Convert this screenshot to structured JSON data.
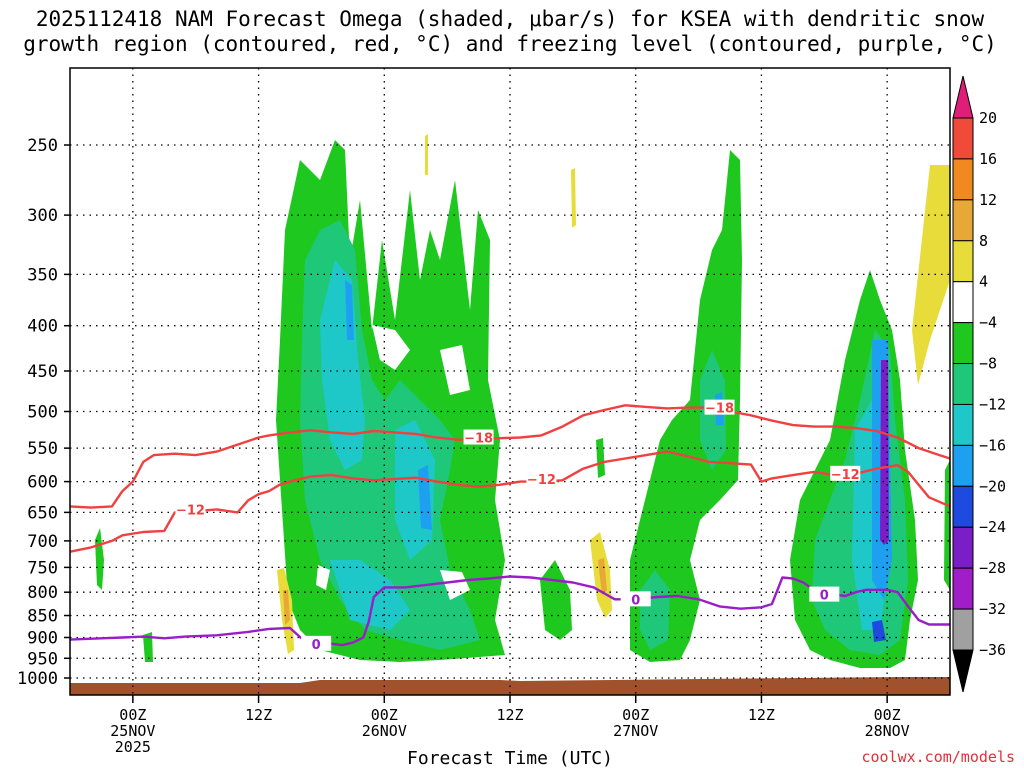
{
  "title": {
    "line1": "2025112418 NAM Forecast Omega (shaded, μbar/s) for KSEA with dendritic snow",
    "line2": "growth region (contoured, red, °C) and freezing level (contoured, purple, °C)"
  },
  "credit": "coolwx.com/models",
  "chart_data": {
    "type": "time-height cross section",
    "title": "2025112418 NAM Forecast Omega (shaded, μbar/s) for KSEA with dendritic snow growth region (contoured, red, °C) and freezing level (contoured, purple, °C)",
    "xlabel": "Forecast Time (UTC)",
    "ylabel": "",
    "x_range_hours": [
      0,
      84
    ],
    "y_range_hpa": [
      1000,
      200
    ],
    "y_ticks": [
      250,
      300,
      350,
      400,
      450,
      500,
      550,
      600,
      650,
      700,
      750,
      800,
      850,
      900,
      950,
      1000
    ],
    "x_ticks": [
      {
        "hour": 6,
        "label": "00Z",
        "sub1": "25NOV",
        "sub2": "2025"
      },
      {
        "hour": 18,
        "label": "12Z",
        "sub1": "",
        "sub2": ""
      },
      {
        "hour": 30,
        "label": "00Z",
        "sub1": "26NOV",
        "sub2": ""
      },
      {
        "hour": 42,
        "label": "12Z",
        "sub1": "",
        "sub2": ""
      },
      {
        "hour": 54,
        "label": "00Z",
        "sub1": "27NOV",
        "sub2": ""
      },
      {
        "hour": 66,
        "label": "12Z",
        "sub1": "",
        "sub2": ""
      },
      {
        "hour": 78,
        "label": "00Z",
        "sub1": "28NOV",
        "sub2": ""
      }
    ],
    "colorbar": {
      "labels": [
        "20",
        "16",
        "12",
        "8",
        "4",
        "−4",
        "−8",
        "−12",
        "−16",
        "−20",
        "−24",
        "−28",
        "−32",
        "−36"
      ],
      "colors": [
        "#e01e78",
        "#f04a3a",
        "#f08a20",
        "#e8a838",
        "#e8dc3a",
        "#ffffff",
        "#1ec81e",
        "#1ec878",
        "#1ec8c8",
        "#1ea0f0",
        "#1e4ae0",
        "#7a1ec8",
        "#a01ec8",
        "#a0a0a0",
        "#000000"
      ]
    },
    "series": [
      {
        "name": "-12 °C isotherm",
        "color": "#f04040",
        "labels": [
          "−12",
          "−12",
          "−12"
        ],
        "points": [
          [
            0,
            720
          ],
          [
            2,
            712
          ],
          [
            4,
            700
          ],
          [
            5,
            690
          ],
          [
            7,
            684
          ],
          [
            9,
            682
          ],
          [
            10,
            650
          ],
          [
            12,
            648
          ],
          [
            14,
            645
          ],
          [
            16,
            650
          ],
          [
            17,
            630
          ],
          [
            18,
            620
          ],
          [
            19,
            615
          ],
          [
            20,
            605
          ],
          [
            21,
            600
          ],
          [
            23,
            592
          ],
          [
            25,
            590
          ],
          [
            27,
            595
          ],
          [
            29,
            598
          ],
          [
            31,
            596
          ],
          [
            33,
            594
          ],
          [
            35,
            600
          ],
          [
            37,
            605
          ],
          [
            39,
            608
          ],
          [
            41,
            605
          ],
          [
            43,
            600
          ],
          [
            45,
            600
          ],
          [
            47,
            598
          ],
          [
            49,
            580
          ],
          [
            51,
            570
          ],
          [
            53,
            565
          ],
          [
            55,
            560
          ],
          [
            57,
            555
          ],
          [
            59,
            562
          ],
          [
            61,
            570
          ],
          [
            63,
            572
          ],
          [
            65,
            574
          ],
          [
            66,
            600
          ],
          [
            67,
            595
          ],
          [
            69,
            590
          ],
          [
            71,
            585
          ],
          [
            73,
            590
          ],
          [
            75,
            588
          ],
          [
            77,
            580
          ],
          [
            79,
            575
          ],
          [
            80,
            585
          ],
          [
            81,
            605
          ],
          [
            82,
            625
          ],
          [
            84,
            640
          ]
        ]
      },
      {
        "name": "-18 °C isotherm",
        "color": "#f04040",
        "labels": [
          "−18",
          "−18"
        ],
        "points": [
          [
            0,
            640
          ],
          [
            2,
            642
          ],
          [
            4,
            640
          ],
          [
            5,
            615
          ],
          [
            6,
            600
          ],
          [
            7,
            570
          ],
          [
            8,
            560
          ],
          [
            10,
            558
          ],
          [
            12,
            560
          ],
          [
            14,
            555
          ],
          [
            16,
            545
          ],
          [
            17,
            540
          ],
          [
            18,
            535
          ],
          [
            19,
            532
          ],
          [
            21,
            528
          ],
          [
            23,
            525
          ],
          [
            25,
            528
          ],
          [
            27,
            530
          ],
          [
            29,
            526
          ],
          [
            31,
            528
          ],
          [
            33,
            530
          ],
          [
            35,
            535
          ],
          [
            37,
            538
          ],
          [
            39,
            538
          ],
          [
            41,
            536
          ],
          [
            43,
            535
          ],
          [
            45,
            532
          ],
          [
            47,
            520
          ],
          [
            49,
            505
          ],
          [
            51,
            498
          ],
          [
            53,
            492
          ],
          [
            55,
            494
          ],
          [
            57,
            496
          ],
          [
            59,
            495
          ],
          [
            61,
            495
          ],
          [
            63,
            500
          ],
          [
            65,
            505
          ],
          [
            67,
            512
          ],
          [
            69,
            518
          ],
          [
            71,
            520
          ],
          [
            73,
            520
          ],
          [
            75,
            522
          ],
          [
            77,
            526
          ],
          [
            79,
            535
          ],
          [
            81,
            550
          ],
          [
            83,
            560
          ],
          [
            84,
            565
          ]
        ]
      },
      {
        "name": "0 °C freezing level",
        "color": "#9a1ec8",
        "labels": [
          "0",
          "0",
          "0"
        ],
        "points": [
          [
            0,
            905
          ],
          [
            3,
            902
          ],
          [
            5,
            900
          ],
          [
            7,
            898
          ],
          [
            9,
            902
          ],
          [
            11,
            898
          ],
          [
            14,
            895
          ],
          [
            17,
            887
          ],
          [
            19,
            880
          ],
          [
            21,
            878
          ],
          [
            22,
            900
          ],
          [
            23,
            910
          ],
          [
            25,
            915
          ],
          [
            26,
            918
          ],
          [
            27,
            912
          ],
          [
            28,
            900
          ],
          [
            28.5,
            865
          ],
          [
            29,
            810
          ],
          [
            30,
            790
          ],
          [
            32,
            790
          ],
          [
            34,
            785
          ],
          [
            36,
            780
          ],
          [
            38,
            775
          ],
          [
            40,
            772
          ],
          [
            42,
            768
          ],
          [
            44,
            770
          ],
          [
            46,
            775
          ],
          [
            48,
            780
          ],
          [
            50,
            790
          ],
          [
            52,
            815
          ],
          [
            54,
            815
          ],
          [
            56,
            810
          ],
          [
            58,
            808
          ],
          [
            60,
            815
          ],
          [
            62,
            830
          ],
          [
            64,
            835
          ],
          [
            66,
            832
          ],
          [
            67,
            825
          ],
          [
            68,
            770
          ],
          [
            69,
            772
          ],
          [
            70,
            780
          ],
          [
            71,
            795
          ],
          [
            72,
            802
          ],
          [
            73,
            805
          ],
          [
            74,
            808
          ],
          [
            75,
            800
          ],
          [
            76,
            795
          ],
          [
            78,
            795
          ],
          [
            79,
            800
          ],
          [
            80,
            830
          ],
          [
            81,
            860
          ],
          [
            82,
            870
          ],
          [
            84,
            870
          ]
        ]
      }
    ]
  }
}
